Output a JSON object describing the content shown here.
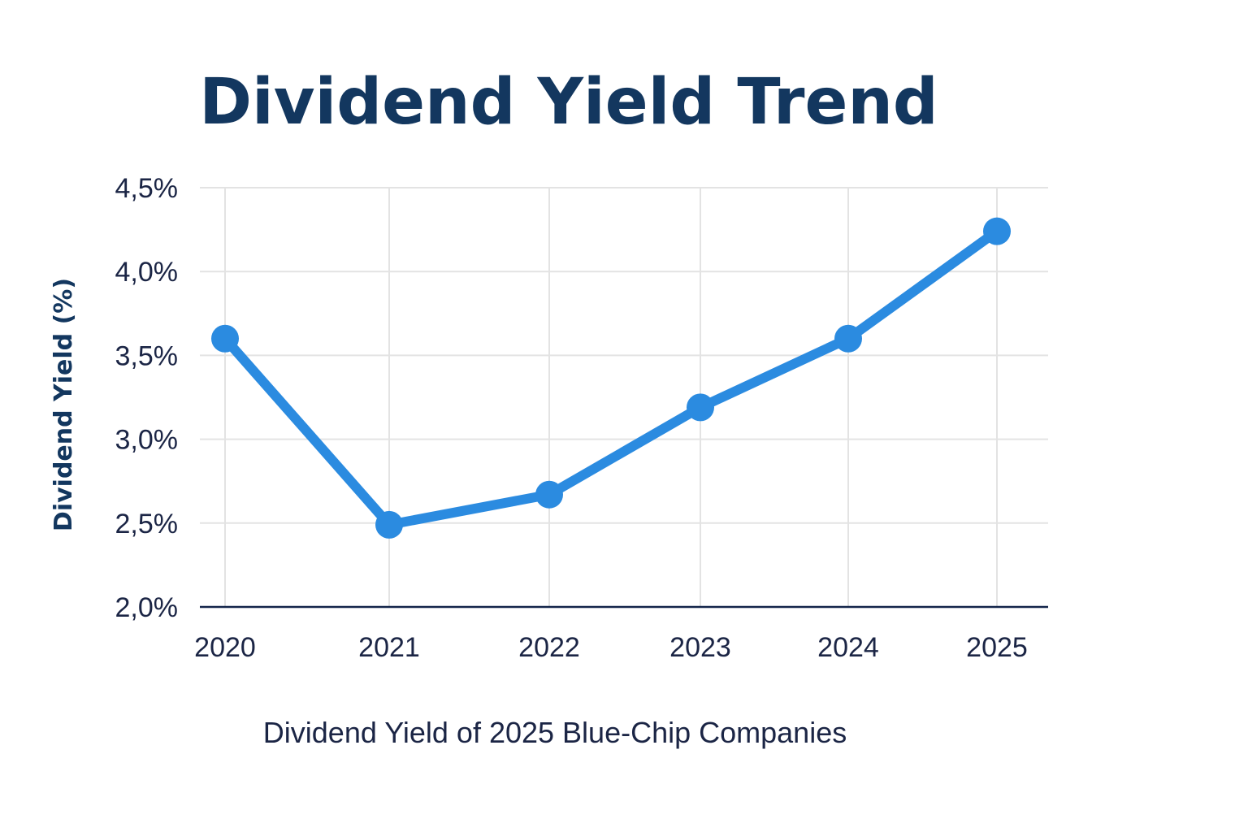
{
  "colors": {
    "title": "#13375f",
    "text": "#1b2545",
    "line": "#2b8be0",
    "grid": "#e3e3e3",
    "axis": "#13254a"
  },
  "chart_data": {
    "type": "line",
    "title": "Dividend Yield Trend",
    "xlabel": "Dividend Yield of 2025 Blue-Chip Companies",
    "ylabel": "Dividend Yield (%)",
    "categories": [
      "2020",
      "2021",
      "2022",
      "2023",
      "2024",
      "2025"
    ],
    "series": [
      {
        "name": "Dividend Yield",
        "values": [
          3.6,
          2.49,
          2.67,
          3.19,
          3.6,
          4.24
        ]
      }
    ],
    "ylim": [
      2.0,
      4.5
    ],
    "yticks": [
      {
        "value": 4.5,
        "label": "4,5%"
      },
      {
        "value": 4.0,
        "label": "4,0%"
      },
      {
        "value": 3.5,
        "label": "3,5%"
      },
      {
        "value": 3.0,
        "label": "3,0%"
      },
      {
        "value": 2.5,
        "label": "2,5%"
      },
      {
        "value": 2.0,
        "label": "2,0%"
      }
    ],
    "grid": true,
    "legend": "none"
  }
}
